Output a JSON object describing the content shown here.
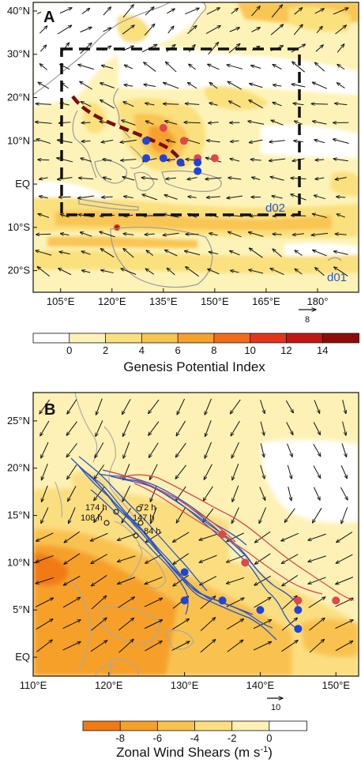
{
  "panel_a": {
    "letter": "A",
    "lat_ticks": [
      "40°N",
      "30°N",
      "20°N",
      "10°N",
      "EQ",
      "10°S",
      "20°S"
    ],
    "lon_ticks": [
      "105°E",
      "120°E",
      "135°E",
      "150°E",
      "165°E",
      "180°"
    ],
    "domain_labels": {
      "inner": "d02",
      "outer": "d01"
    },
    "ref_vector": "8",
    "colorbar": {
      "title": "Genesis Potential Index",
      "ticks": [
        "0",
        "2",
        "4",
        "6",
        "8",
        "10",
        "12",
        "14"
      ],
      "colors": [
        "#ffffff",
        "#fdf3b8",
        "#fbe07e",
        "#f9c552",
        "#f6a12e",
        "#f06d1b",
        "#e2361a",
        "#c11813",
        "#8e0b0b"
      ]
    }
  },
  "panel_b": {
    "letter": "B",
    "lat_ticks": [
      "25°N",
      "20°N",
      "15°N",
      "10°N",
      "5°N",
      "EQ"
    ],
    "lon_ticks": [
      "110°E",
      "120°E",
      "130°E",
      "140°E",
      "150°E"
    ],
    "ref_vector": "10",
    "track_labels": [
      "174 h",
      "72 h",
      "108 h",
      "147 h",
      "84 h"
    ],
    "colorbar": {
      "title": "Zonal Wind Shears (m s",
      "title_sup": "-1",
      "title_end": ")",
      "ticks": [
        "-8",
        "-6",
        "-4",
        "-2",
        "0"
      ],
      "colors": [
        "#f17a12",
        "#f6a02a",
        "#f9c24f",
        "#fbde80",
        "#fdf1b5",
        "#ffffff"
      ]
    }
  },
  "chart_data": [
    {
      "type": "heatmap",
      "title": "",
      "variable": "Genesis Potential Index",
      "overlay": "wind vectors",
      "xlim": [
        97,
        192
      ],
      "ylim": [
        -25,
        42
      ],
      "levels": [
        0,
        2,
        4,
        6,
        8,
        10,
        12,
        14
      ],
      "domain_boxes": [
        {
          "name": "d02",
          "lon": [
            105,
            175
          ],
          "lat": [
            -7,
            33
          ]
        },
        {
          "name": "d01"
        }
      ],
      "track_mean_dashed": [
        [
          106,
          21
        ],
        [
          112,
          16
        ],
        [
          118,
          14
        ],
        [
          124,
          12
        ],
        [
          130,
          10
        ],
        [
          136,
          8
        ],
        [
          142,
          6
        ]
      ],
      "genesis_points": {
        "red": [
          [
            135,
            13
          ],
          [
            141,
            10
          ],
          [
            145,
            6
          ],
          [
            150,
            6
          ]
        ],
        "blue": [
          [
            130,
            10
          ],
          [
            130,
            6
          ],
          [
            135,
            6
          ],
          [
            140,
            5
          ],
          [
            145,
            5
          ],
          [
            145,
            3
          ]
        ]
      },
      "reference_vector": 8
    },
    {
      "type": "heatmap",
      "title": "",
      "variable": "Zonal Wind Shears (m s-1)",
      "overlay": "wind vectors and storm tracks",
      "xlim": [
        110,
        153
      ],
      "ylim": [
        -2,
        28
      ],
      "levels": [
        -8,
        -6,
        -4,
        -2,
        0
      ],
      "genesis_points": {
        "red": [
          [
            135,
            13
          ],
          [
            138,
            10
          ],
          [
            145,
            6
          ],
          [
            150,
            6
          ]
        ],
        "blue": [
          [
            130,
            9
          ],
          [
            130,
            6
          ],
          [
            135,
            6
          ],
          [
            140,
            5
          ],
          [
            145,
            5
          ],
          [
            145,
            3
          ]
        ]
      },
      "track_labels": [
        {
          "text": "174 h",
          "lon": 122,
          "lat": 15.5
        },
        {
          "text": "72 h",
          "lon": 126.5,
          "lat": 15.5
        },
        {
          "text": "108 h",
          "lon": 119,
          "lat": 14.2
        },
        {
          "text": "147 h",
          "lon": 127,
          "lat": 14.2
        },
        {
          "text": "84 h",
          "lon": 127,
          "lat": 12.8
        }
      ],
      "reference_vector": 10
    }
  ]
}
